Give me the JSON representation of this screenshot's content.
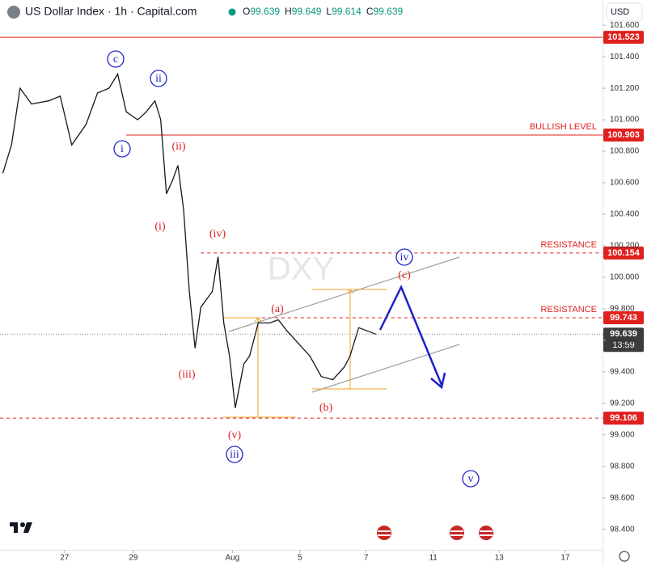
{
  "chart_data": {
    "type": "line",
    "title": "US Dollar Index · 1h · Capital.com",
    "ohlc": [
      {
        "label": "O",
        "value": 99.639
      },
      {
        "label": "H",
        "value": 99.649
      },
      {
        "label": "L",
        "value": 99.614
      },
      {
        "label": "C",
        "value": 99.639
      }
    ],
    "currency": "USD",
    "watermark": "DXY",
    "x": [
      1,
      4,
      7,
      11,
      17,
      21,
      25,
      30,
      34,
      38,
      41,
      44,
      48,
      51,
      54,
      56,
      58,
      60,
      62,
      64,
      66,
      68,
      70,
      74,
      76,
      78,
      80,
      82,
      85,
      87,
      90,
      94,
      97,
      100,
      104,
      108,
      112,
      116,
      120,
      122,
      125,
      128,
      131
    ],
    "values": [
      100.66,
      100.84,
      101.2,
      101.1,
      101.12,
      101.15,
      100.84,
      100.97,
      101.17,
      101.2,
      101.29,
      101.05,
      101.0,
      101.05,
      101.12,
      101.0,
      100.53,
      100.61,
      100.71,
      100.43,
      99.91,
      99.55,
      99.81,
      99.91,
      100.13,
      99.71,
      99.5,
      99.17,
      99.45,
      99.5,
      99.71,
      99.71,
      99.73,
      99.66,
      99.58,
      99.5,
      99.37,
      99.35,
      99.43,
      99.5,
      99.68,
      99.66,
      99.639
    ],
    "color": "#131722",
    "xlim": [
      0,
      210
    ],
    "xticks": [
      {
        "value": 22.5,
        "label": "27"
      },
      {
        "value": 46.5,
        "label": "29"
      },
      {
        "value": 81,
        "label": "Aug"
      },
      {
        "value": 104.5,
        "label": "5"
      },
      {
        "value": 127.6,
        "label": "7"
      },
      {
        "value": 151,
        "label": "11"
      },
      {
        "value": 174,
        "label": "13"
      },
      {
        "value": 197,
        "label": "17"
      }
    ],
    "ylim": [
      98.27,
      101.76
    ],
    "yticks": [
      {
        "value": 98.4,
        "label": "98.400"
      },
      {
        "value": 98.6,
        "label": "98.600"
      },
      {
        "value": 98.8,
        "label": "98.800"
      },
      {
        "value": 99.0,
        "label": "99.000"
      },
      {
        "value": 99.2,
        "label": "99.200"
      },
      {
        "value": 99.4,
        "label": "99.400"
      },
      {
        "value": 99.6,
        "label": "99.600"
      },
      {
        "value": 99.8,
        "label": "99.800"
      },
      {
        "value": 100.0,
        "label": "100.000"
      },
      {
        "value": 100.2,
        "label": "100.200"
      },
      {
        "value": 100.4,
        "label": "100.400"
      },
      {
        "value": 100.6,
        "label": "100.600"
      },
      {
        "value": 100.8,
        "label": "100.800"
      },
      {
        "value": 101.0,
        "label": "101.000"
      },
      {
        "value": 101.2,
        "label": "101.200"
      },
      {
        "value": 101.4,
        "label": "101.400"
      },
      {
        "value": 101.6,
        "label": "101.600"
      }
    ],
    "levels": [
      {
        "value": 101.523,
        "dashed": false
      },
      {
        "value": 100.903,
        "label": "BULLISH LEVEL",
        "dashed": false
      },
      {
        "value": 100.154,
        "label": "RESISTANCE",
        "dashed": true
      },
      {
        "value": 99.743,
        "label": "RESISTANCE",
        "dashed": true
      },
      {
        "value": 99.106,
        "dashed": true
      }
    ],
    "level_color": "#e0201e",
    "last": {
      "value": 99.639,
      "countdown": "13:59"
    },
    "annotations": [
      {
        "text": "c",
        "circled": true
      },
      {
        "text": "ii",
        "circled": true
      },
      {
        "text": "i",
        "circled": true
      },
      {
        "text": "(ii)",
        "circled": false
      },
      {
        "text": "(i)",
        "circled": false
      },
      {
        "text": "(iv)",
        "circled": false
      },
      {
        "text": "(iii)",
        "circled": false
      },
      {
        "text": "(v)",
        "circled": false
      },
      {
        "text": "iii",
        "circled": true
      },
      {
        "text": "(a)",
        "circled": false
      },
      {
        "text": "(b)",
        "circled": false
      },
      {
        "text": "(c)",
        "circled": false
      },
      {
        "text": "iv",
        "circled": true
      },
      {
        "text": "v",
        "circled": true
      }
    ]
  }
}
